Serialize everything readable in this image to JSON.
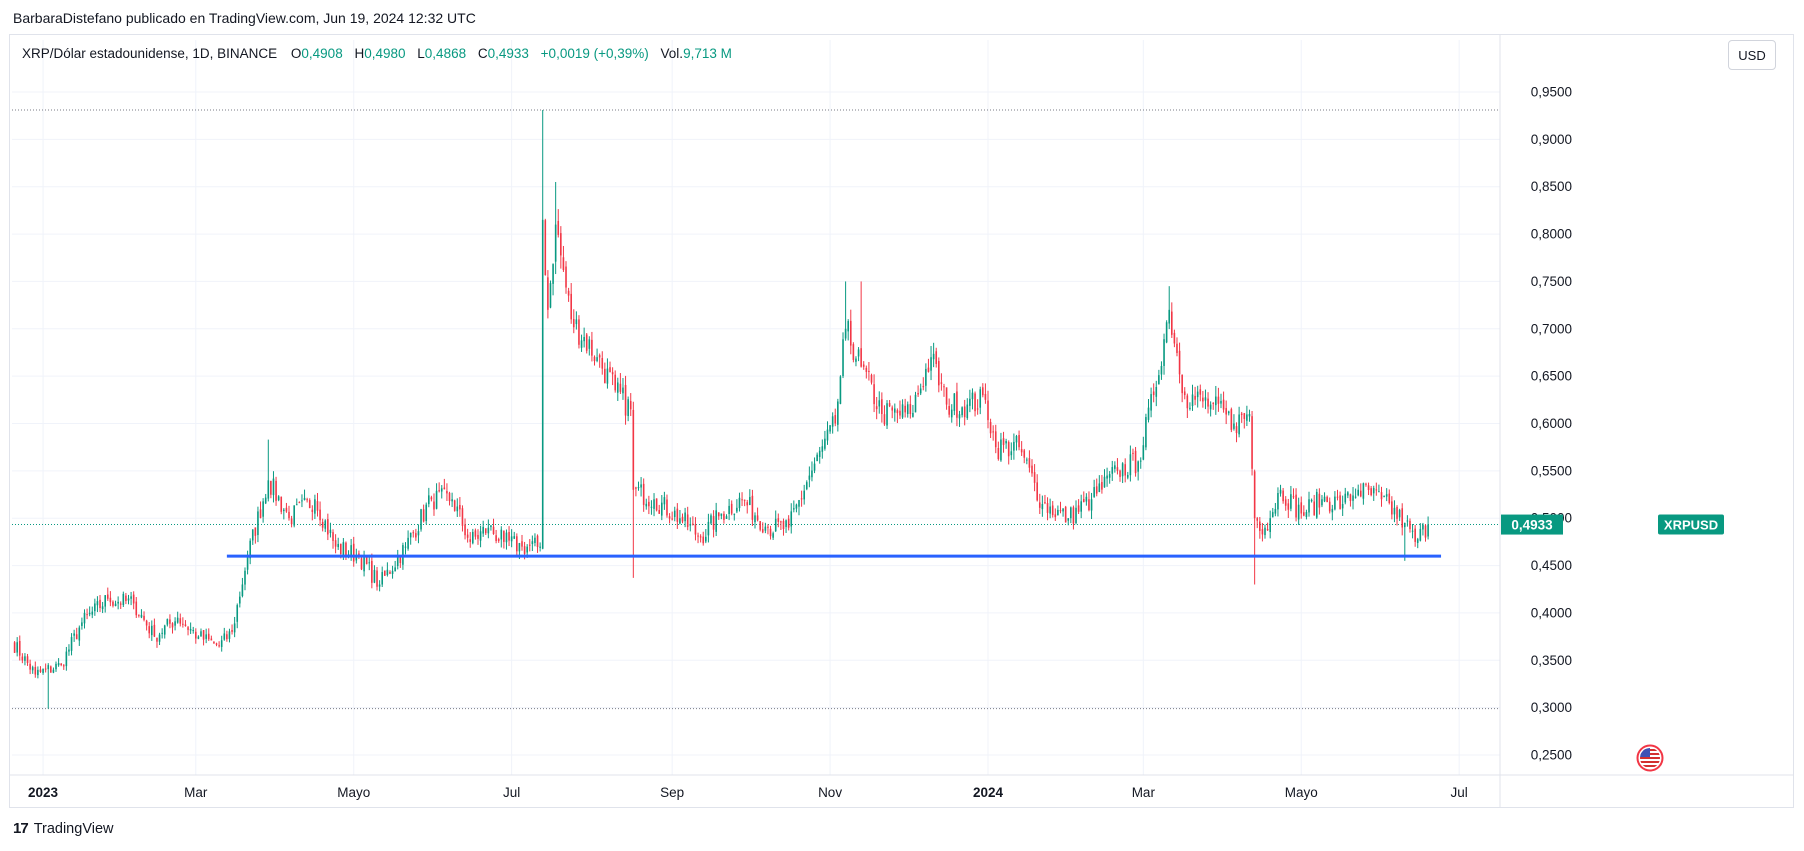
{
  "header": {
    "publisher_line": "BarbaraDistefano publicado en TradingView.com, Jun 19, 2024 12:32 UTC"
  },
  "legend": {
    "symbol": "XRP/Dólar estadounidense, 1D, BINANCE",
    "open_label": "O",
    "open": "0,4908",
    "high_label": "H",
    "high": "0,4980",
    "low_label": "L",
    "low": "0,4868",
    "close_label": "C",
    "close": "0,4933",
    "change": "+0,0019 (+0,39%)",
    "vol_label": "Vol.",
    "vol": "9,713 M"
  },
  "currency_button": "USD",
  "footer": {
    "brand": "TradingView",
    "logo": "17"
  },
  "flag_icon": "us-flag-icon",
  "chart_data": {
    "type": "candlestick",
    "symbol": "XRPUSD",
    "last_price_label": "XRPUSD",
    "last_price": "0,4933",
    "colors": {
      "up": "#089981",
      "down": "#f23645",
      "support_line": "#2962ff",
      "last_price_bg": "#089981"
    },
    "y_axis_ticks": [
      "0,9500",
      "0,9000",
      "0,8500",
      "0,8000",
      "0,7500",
      "0,7000",
      "0,6500",
      "0,6000",
      "0,5500",
      "0,5000",
      "0,4500",
      "0,4000",
      "0,3500",
      "0,3000",
      "0,2500"
    ],
    "y_tick_values": [
      0.95,
      0.9,
      0.85,
      0.8,
      0.75,
      0.7,
      0.65,
      0.6,
      0.55,
      0.5,
      0.45,
      0.4,
      0.35,
      0.3,
      0.25
    ],
    "ylim": [
      0.235,
      0.98
    ],
    "x_axis_ticks": [
      {
        "label": "2023",
        "date": "2023-01-01",
        "bold": true
      },
      {
        "label": "Mar",
        "date": "2023-03-01",
        "bold": false
      },
      {
        "label": "Mayo",
        "date": "2023-05-01",
        "bold": false
      },
      {
        "label": "Jul",
        "date": "2023-07-01",
        "bold": false
      },
      {
        "label": "Sep",
        "date": "2023-09-01",
        "bold": false
      },
      {
        "label": "Nov",
        "date": "2023-11-01",
        "bold": false
      },
      {
        "label": "2024",
        "date": "2024-01-01",
        "bold": true
      },
      {
        "label": "Mar",
        "date": "2024-03-01",
        "bold": false
      },
      {
        "label": "Mayo",
        "date": "2024-05-01",
        "bold": false
      },
      {
        "label": "Jul",
        "date": "2024-07-01",
        "bold": false
      }
    ],
    "x_range": [
      "2022-12-20",
      "2024-07-16"
    ],
    "dotted_high_level": 0.931,
    "dotted_low_level": 0.299,
    "current_price_level": 0.4933,
    "support_line": {
      "start": "2023-03-13",
      "end": "2024-06-24",
      "value": 0.46
    },
    "price_anchors": [
      [
        "2022-12-20",
        0.37
      ],
      [
        "2022-12-29",
        0.335
      ],
      [
        "2023-01-08",
        0.345
      ],
      [
        "2023-01-16",
        0.39
      ],
      [
        "2023-01-26",
        0.415
      ],
      [
        "2023-02-05",
        0.41
      ],
      [
        "2023-02-13",
        0.375
      ],
      [
        "2023-02-22",
        0.395
      ],
      [
        "2023-03-02",
        0.375
      ],
      [
        "2023-03-10",
        0.365
      ],
      [
        "2023-03-15",
        0.38
      ],
      [
        "2023-03-21",
        0.46
      ],
      [
        "2023-03-29",
        0.54
      ],
      [
        "2023-04-06",
        0.5
      ],
      [
        "2023-04-16",
        0.52
      ],
      [
        "2023-04-24",
        0.47
      ],
      [
        "2023-05-03",
        0.46
      ],
      [
        "2023-05-11",
        0.43
      ],
      [
        "2023-05-21",
        0.47
      ],
      [
        "2023-05-31",
        0.52
      ],
      [
        "2023-06-08",
        0.52
      ],
      [
        "2023-06-15",
        0.475
      ],
      [
        "2023-06-22",
        0.49
      ],
      [
        "2023-06-28",
        0.475
      ],
      [
        "2023-07-05",
        0.47
      ],
      [
        "2023-07-12",
        0.47
      ],
      [
        "2023-07-13",
        0.815
      ],
      [
        "2023-07-15",
        0.72
      ],
      [
        "2023-07-18",
        0.81
      ],
      [
        "2023-07-24",
        0.71
      ],
      [
        "2023-08-03",
        0.67
      ],
      [
        "2023-08-10",
        0.635
      ],
      [
        "2023-08-16",
        0.615
      ],
      [
        "2023-08-17",
        0.53
      ],
      [
        "2023-08-25",
        0.52
      ],
      [
        "2023-09-04",
        0.5
      ],
      [
        "2023-09-12",
        0.48
      ],
      [
        "2023-09-20",
        0.505
      ],
      [
        "2023-09-28",
        0.52
      ],
      [
        "2023-10-08",
        0.49
      ],
      [
        "2023-10-16",
        0.49
      ],
      [
        "2023-10-24",
        0.545
      ],
      [
        "2023-11-03",
        0.6
      ],
      [
        "2023-11-07",
        0.7
      ],
      [
        "2023-11-13",
        0.66
      ],
      [
        "2023-11-21",
        0.61
      ],
      [
        "2023-12-02",
        0.61
      ],
      [
        "2023-12-10",
        0.67
      ],
      [
        "2023-12-16",
        0.62
      ],
      [
        "2023-12-24",
        0.62
      ],
      [
        "2023-12-31",
        0.625
      ],
      [
        "2024-01-04",
        0.575
      ],
      [
        "2024-01-13",
        0.575
      ],
      [
        "2024-01-22",
        0.515
      ],
      [
        "2024-02-01",
        0.5
      ],
      [
        "2024-02-10",
        0.52
      ],
      [
        "2024-02-20",
        0.55
      ],
      [
        "2024-02-28",
        0.56
      ],
      [
        "2024-03-05",
        0.63
      ],
      [
        "2024-03-11",
        0.72
      ],
      [
        "2024-03-17",
        0.63
      ],
      [
        "2024-03-27",
        0.62
      ],
      [
        "2024-04-05",
        0.6
      ],
      [
        "2024-04-11",
        0.61
      ],
      [
        "2024-04-13",
        0.5
      ],
      [
        "2024-04-17",
        0.49
      ],
      [
        "2024-04-23",
        0.53
      ],
      [
        "2024-05-01",
        0.505
      ],
      [
        "2024-05-09",
        0.52
      ],
      [
        "2024-05-17",
        0.515
      ],
      [
        "2024-05-23",
        0.53
      ],
      [
        "2024-06-01",
        0.52
      ],
      [
        "2024-06-10",
        0.495
      ],
      [
        "2024-06-14",
        0.475
      ],
      [
        "2024-06-19",
        0.4933
      ]
    ],
    "notable_wicks": [
      {
        "date": "2023-01-03",
        "low": 0.299
      },
      {
        "date": "2023-03-29",
        "high": 0.583
      },
      {
        "date": "2023-07-13",
        "high": 0.931
      },
      {
        "date": "2023-07-18",
        "high": 0.855
      },
      {
        "date": "2023-08-17",
        "low": 0.437
      },
      {
        "date": "2023-11-07",
        "high": 0.75
      },
      {
        "date": "2023-11-13",
        "high": 0.75
      },
      {
        "date": "2024-03-11",
        "high": 0.745
      },
      {
        "date": "2024-04-13",
        "low": 0.43
      },
      {
        "date": "2024-06-10",
        "low": 0.455
      }
    ]
  }
}
